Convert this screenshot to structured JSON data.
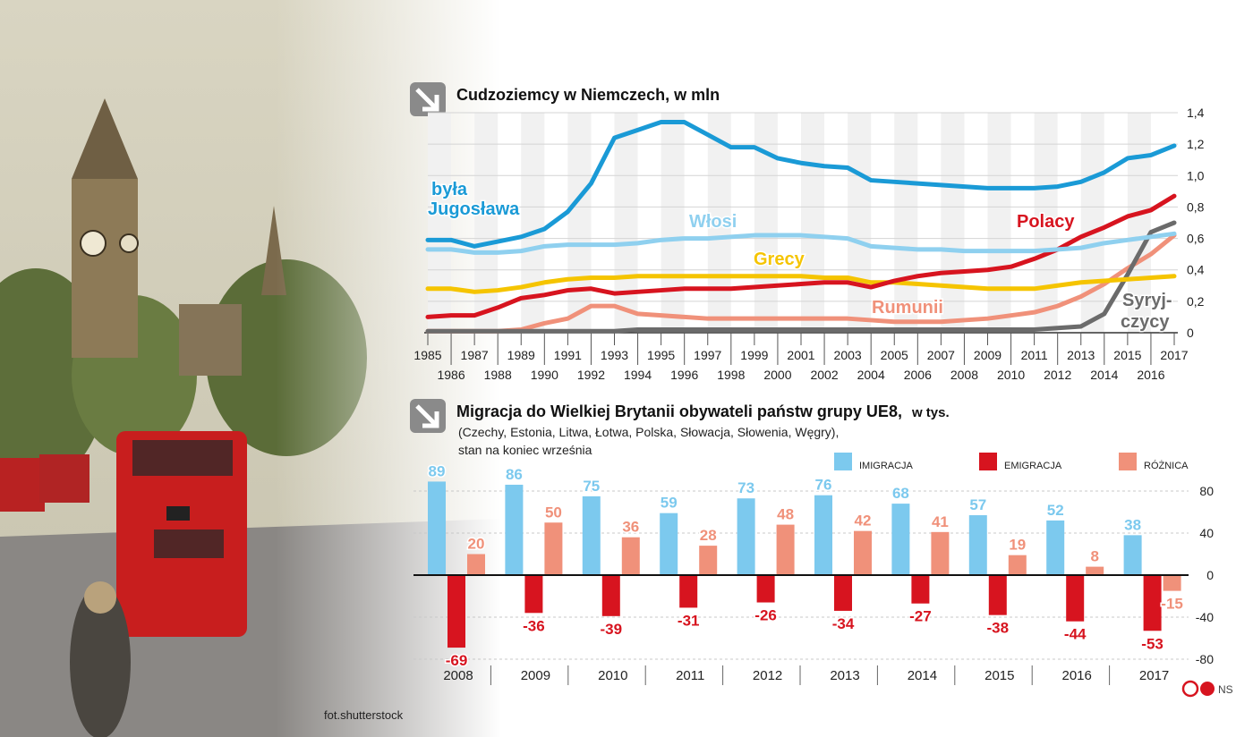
{
  "photo_credit": "fot.shutterstock",
  "copyright": {
    "mark": "©P",
    "initials": "NS"
  },
  "colors": {
    "jugoslawia": "#1a9ad6",
    "wlosi": "#8fd0ef",
    "grecy": "#f5c400",
    "polacy": "#d7141f",
    "rumunii": "#f0917a",
    "syryjczycy": "#6b6b6b",
    "immigration": "#7cc9ee",
    "emigration": "#d7141f",
    "difference": "#f0917a",
    "bus": "#c81e1e"
  },
  "chart_data": [
    {
      "type": "line",
      "title": "Cudzoziemcy w Niemczech, w mln",
      "x": [
        1985,
        1986,
        1987,
        1988,
        1989,
        1990,
        1991,
        1992,
        1993,
        1994,
        1995,
        1996,
        1997,
        1998,
        1999,
        2000,
        2001,
        2002,
        2003,
        2004,
        2005,
        2006,
        2007,
        2008,
        2009,
        2010,
        2011,
        2012,
        2013,
        2014,
        2015,
        2016,
        2017
      ],
      "x_labels_top": [
        "1985",
        "1987",
        "1989",
        "1991",
        "1993",
        "1995",
        "1997",
        "1999",
        "2001",
        "2003",
        "2005",
        "2007",
        "2009",
        "2011",
        "2013",
        "2015",
        "2017"
      ],
      "x_labels_bottom": [
        "1986",
        "1988",
        "1990",
        "1992",
        "1994",
        "1996",
        "1998",
        "2000",
        "2002",
        "2004",
        "2006",
        "2008",
        "2010",
        "2012",
        "2014",
        "2016"
      ],
      "ylim": [
        0,
        1.4
      ],
      "yticks": [
        "0",
        "0,2",
        "0,4",
        "0,6",
        "0,8",
        "1,0",
        "1,2",
        "1,4"
      ],
      "series": [
        {
          "key": "jugoslawia",
          "name": "była",
          "name2": "Jugosława",
          "values": [
            0.59,
            0.59,
            0.55,
            0.58,
            0.61,
            0.66,
            0.77,
            0.95,
            1.24,
            1.29,
            1.34,
            1.34,
            1.26,
            1.18,
            1.18,
            1.11,
            1.08,
            1.06,
            1.05,
            0.97,
            0.96,
            0.95,
            0.94,
            0.93,
            0.92,
            0.92,
            0.92,
            0.93,
            0.96,
            1.02,
            1.11,
            1.13,
            1.19
          ]
        },
        {
          "key": "wlosi",
          "name": "Włosi",
          "values": [
            0.53,
            0.53,
            0.51,
            0.51,
            0.52,
            0.55,
            0.56,
            0.56,
            0.56,
            0.57,
            0.59,
            0.6,
            0.6,
            0.61,
            0.62,
            0.62,
            0.62,
            0.61,
            0.6,
            0.55,
            0.54,
            0.53,
            0.53,
            0.52,
            0.52,
            0.52,
            0.52,
            0.53,
            0.54,
            0.57,
            0.59,
            0.61,
            0.63
          ]
        },
        {
          "key": "grecy",
          "name": "Grecy",
          "values": [
            0.28,
            0.28,
            0.26,
            0.27,
            0.29,
            0.32,
            0.34,
            0.35,
            0.35,
            0.36,
            0.36,
            0.36,
            0.36,
            0.36,
            0.36,
            0.36,
            0.36,
            0.35,
            0.35,
            0.32,
            0.32,
            0.31,
            0.3,
            0.29,
            0.28,
            0.28,
            0.28,
            0.3,
            0.32,
            0.33,
            0.34,
            0.35,
            0.36
          ]
        },
        {
          "key": "polacy",
          "name": "Polacy",
          "values": [
            0.1,
            0.11,
            0.11,
            0.16,
            0.22,
            0.24,
            0.27,
            0.28,
            0.25,
            0.26,
            0.27,
            0.28,
            0.28,
            0.28,
            0.29,
            0.3,
            0.31,
            0.32,
            0.32,
            0.29,
            0.33,
            0.36,
            0.38,
            0.39,
            0.4,
            0.42,
            0.47,
            0.53,
            0.61,
            0.67,
            0.74,
            0.78,
            0.87
          ]
        },
        {
          "key": "rumunii",
          "name": "Rumunii",
          "values": [
            0.01,
            0.01,
            0.01,
            0.01,
            0.02,
            0.06,
            0.09,
            0.17,
            0.17,
            0.12,
            0.11,
            0.1,
            0.09,
            0.09,
            0.09,
            0.09,
            0.09,
            0.09,
            0.09,
            0.08,
            0.07,
            0.07,
            0.07,
            0.08,
            0.09,
            0.11,
            0.13,
            0.17,
            0.23,
            0.31,
            0.41,
            0.5,
            0.62
          ]
        },
        {
          "key": "syryjczycy",
          "name": "Syryj-",
          "name2": "czycy",
          "values": [
            0.01,
            0.01,
            0.01,
            0.01,
            0.01,
            0.01,
            0.01,
            0.01,
            0.01,
            0.02,
            0.02,
            0.02,
            0.02,
            0.02,
            0.02,
            0.02,
            0.02,
            0.02,
            0.02,
            0.02,
            0.02,
            0.02,
            0.02,
            0.02,
            0.02,
            0.02,
            0.02,
            0.03,
            0.04,
            0.12,
            0.37,
            0.64,
            0.7
          ]
        }
      ]
    },
    {
      "type": "bar",
      "title": "Migracja do Wielkiej Brytanii obywateli państw grupy UE8,",
      "title_unit": "w tys.",
      "subtitle_line1": "(Czechy, Estonia, Litwa, Łotwa, Polska, Słowacja, Słowenia, Węgry),",
      "subtitle_line2": "stan na koniec września",
      "categories": [
        "2008",
        "2009",
        "2010",
        "2011",
        "2012",
        "2013",
        "2014",
        "2015",
        "2016",
        "2017"
      ],
      "ylim": [
        -80,
        80
      ],
      "yticks": [
        "80",
        "40",
        "0",
        "-40",
        "-80"
      ],
      "legend": [
        "imigracja",
        "emigracja",
        "różnica"
      ],
      "series": [
        {
          "name": "imigracja",
          "key": "immigration",
          "values": [
            89,
            86,
            75,
            59,
            73,
            76,
            68,
            57,
            52,
            38
          ],
          "labels": [
            "89",
            "86",
            "75",
            "59",
            "73",
            "76",
            "68",
            "57",
            "52",
            "38"
          ]
        },
        {
          "name": "emigracja",
          "key": "emigration",
          "values": [
            -69,
            -36,
            -39,
            -31,
            -26,
            -34,
            -27,
            -38,
            -44,
            -53
          ],
          "labels": [
            "-69",
            "-36",
            "-39",
            "-31",
            "-26",
            "-34",
            "-27",
            "-38",
            "-44",
            "-53"
          ]
        },
        {
          "name": "różnica",
          "key": "difference",
          "values": [
            20,
            50,
            36,
            28,
            48,
            42,
            41,
            19,
            8,
            -15
          ],
          "labels": [
            "20",
            "50",
            "36",
            "28",
            "48",
            "42",
            "41",
            "19",
            "8",
            "-15"
          ]
        }
      ]
    }
  ]
}
